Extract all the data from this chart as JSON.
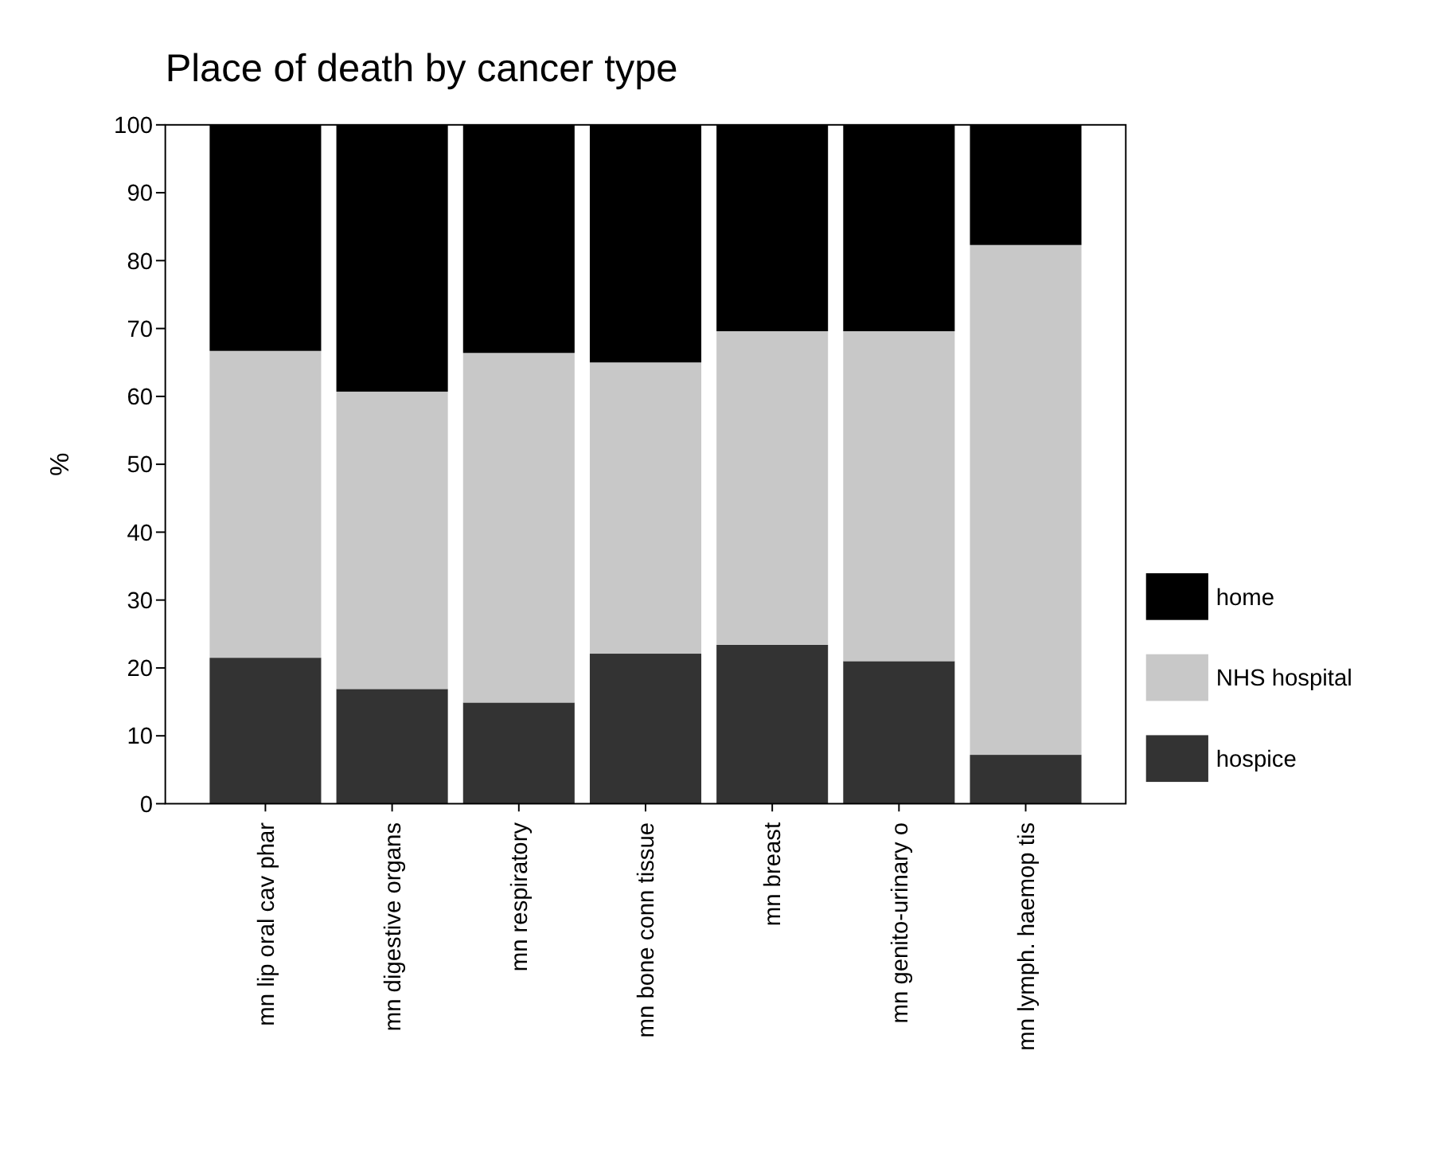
{
  "chart_data": {
    "type": "bar",
    "title": "Place of death by cancer type",
    "ylabel": "%",
    "categories": [
      "mn lip oral cav phar",
      "mn digestive organs",
      "mn respiratory",
      "mn bone conn tissue",
      "mn breast",
      "mn genito-urinary o",
      "mn lymph. haemop tis"
    ],
    "stacked": true,
    "series": [
      {
        "name": "hospice",
        "color": "#333333",
        "values": [
          21.5,
          16.9,
          14.9,
          22.1,
          23.4,
          21.0,
          7.2
        ]
      },
      {
        "name": "NHS hospital",
        "color": "#c8c8c8",
        "values": [
          45.2,
          43.8,
          51.5,
          42.9,
          46.2,
          48.6,
          75.1
        ]
      },
      {
        "name": "home",
        "color": "#000000",
        "values": [
          33.3,
          39.3,
          33.6,
          35.0,
          30.4,
          30.4,
          17.7
        ]
      }
    ],
    "ylim": [
      0,
      100
    ],
    "yticks": [
      0,
      10,
      20,
      30,
      40,
      50,
      60,
      70,
      80,
      90,
      100
    ],
    "grid": false,
    "legend": "right"
  }
}
